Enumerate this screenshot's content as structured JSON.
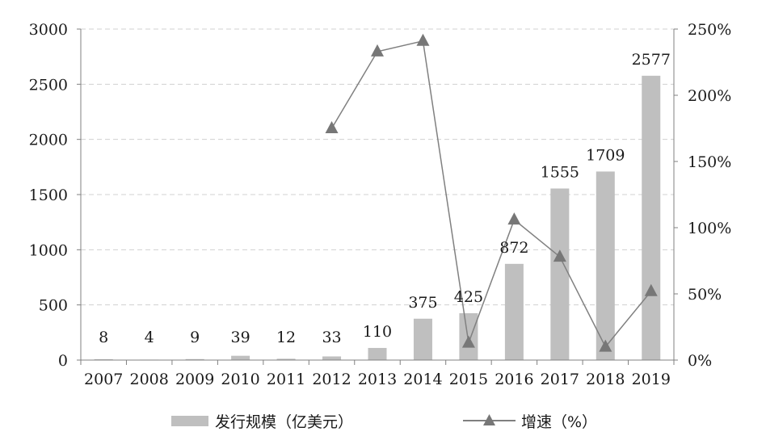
{
  "chart_data": {
    "type": "bar",
    "title": "",
    "categories": [
      "2007",
      "2008",
      "2009",
      "2010",
      "2011",
      "2012",
      "2013",
      "2014",
      "2015",
      "2016",
      "2017",
      "2018",
      "2019"
    ],
    "series": [
      {
        "name": "发行规模（亿美元）",
        "type": "bar",
        "axis": "left",
        "color": "#bfbfbf",
        "values": [
          8,
          4,
          9,
          39,
          12,
          33,
          110,
          375,
          425,
          872,
          1555,
          1709,
          2577
        ],
        "labels": [
          "8",
          "4",
          "9",
          "39",
          "12",
          "33",
          "110",
          "375",
          "425",
          "872",
          "1555",
          "1709",
          "2577"
        ]
      },
      {
        "name": "增速（%）",
        "type": "line",
        "axis": "right",
        "color": "#808080",
        "marker": "triangle",
        "values": [
          null,
          null,
          null,
          null,
          null,
          175,
          233,
          241,
          13,
          106,
          78,
          10,
          52
        ]
      }
    ],
    "y_left": {
      "min": 0,
      "max": 3000,
      "ticks": [
        "0",
        "500",
        "1000",
        "1500",
        "2000",
        "2500",
        "3000"
      ],
      "tick_values": [
        0,
        500,
        1000,
        1500,
        2000,
        2500,
        3000
      ]
    },
    "y_right": {
      "min": 0,
      "max": 250,
      "ticks": [
        "0%",
        "50%",
        "100%",
        "150%",
        "200%",
        "250%"
      ],
      "tick_values": [
        0,
        50,
        100,
        150,
        200,
        250
      ]
    },
    "grid": true,
    "legend_position": "bottom"
  }
}
